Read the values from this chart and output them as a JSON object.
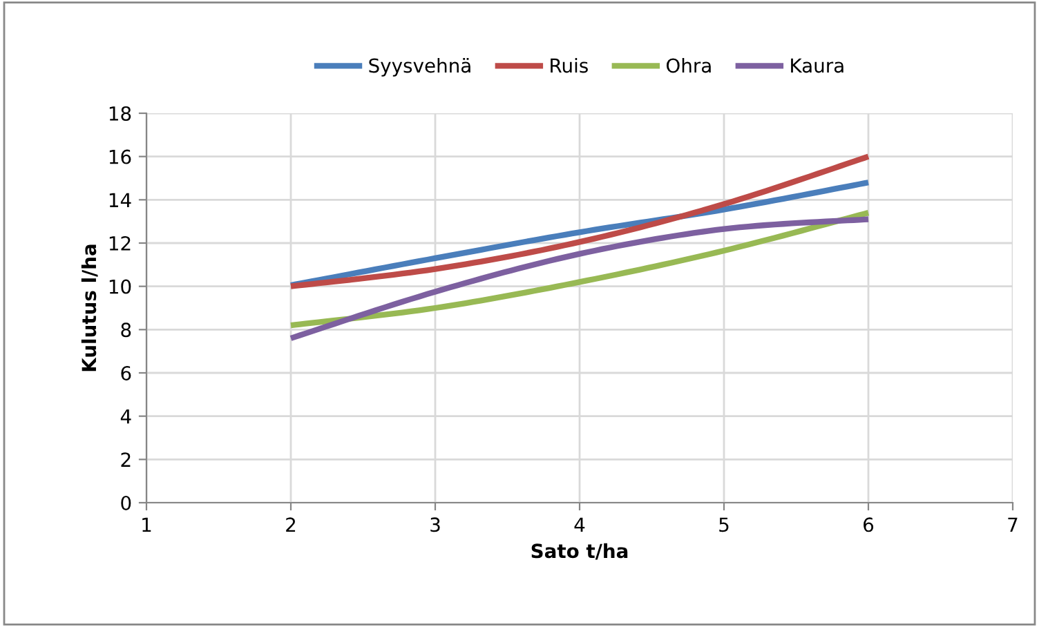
{
  "chart_data": {
    "type": "line",
    "xlabel": "Sato t/ha",
    "ylabel": "Kulutus l/ha",
    "x": [
      2,
      3,
      4,
      5,
      6
    ],
    "series": [
      {
        "name": "Syysvehnä",
        "color": "#4a7ebb",
        "values": [
          10.05,
          11.3,
          12.5,
          13.55,
          14.8
        ]
      },
      {
        "name": "Ruis",
        "color": "#be4b48",
        "values": [
          10.0,
          10.8,
          12.05,
          13.8,
          16.0
        ]
      },
      {
        "name": "Ohra",
        "color": "#98b954",
        "values": [
          8.2,
          9.0,
          10.2,
          11.65,
          13.4
        ]
      },
      {
        "name": "Kaura",
        "color": "#7d60a0",
        "values": [
          7.6,
          9.75,
          11.5,
          12.65,
          13.1
        ]
      }
    ],
    "xlim": [
      1,
      7
    ],
    "xticks": [
      1,
      2,
      3,
      4,
      5,
      6,
      7
    ],
    "ylim": [
      0,
      18
    ],
    "yticks": [
      0,
      2,
      4,
      6,
      8,
      10,
      12,
      14,
      16,
      18
    ],
    "grid": true,
    "legend": "top",
    "marker": "none",
    "line_style": "solid"
  }
}
